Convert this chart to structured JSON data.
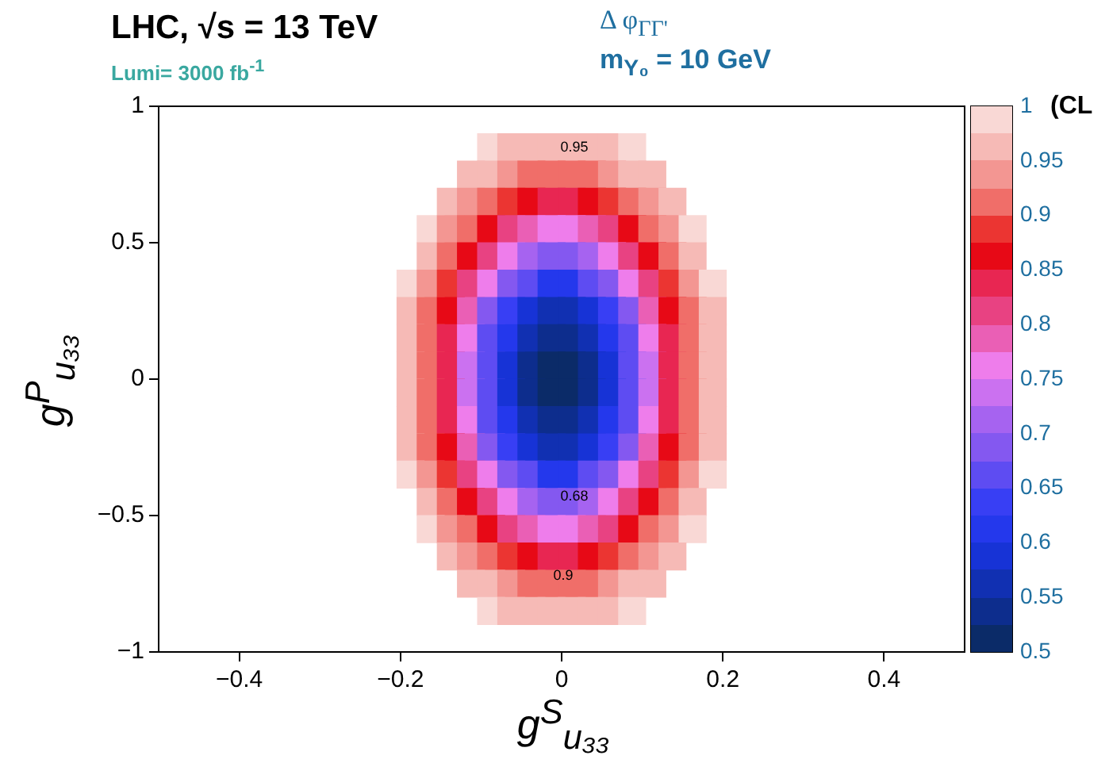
{
  "chart_data": {
    "type": "scatter",
    "title": "LHC,  √s = 13 TeV",
    "marker": "square",
    "annotations": [
      "Lumi= 3000 fb$^{-1}$",
      "Δ φ$_{ΓΓ'}$",
      "m$_{Y₀}$ = 10 GeV",
      "0.95",
      "0.68",
      "0.9"
    ],
    "xlabel": "g$^{S}$$_{u₃₃}$",
    "ylabel": "g$^{P}$$_{u₃₃}$",
    "clabel": "(CL",
    "xlim": [
      -0.5,
      0.5
    ],
    "xticks": [
      {
        "value": -0.4,
        "label": "−0.4"
      },
      {
        "value": -0.2,
        "label": "−0.2"
      },
      0,
      0.2,
      0.4
    ],
    "ylim": [
      -1,
      1
    ],
    "yticks": [
      {
        "value": -1,
        "label": "−1"
      },
      {
        "value": -0.5,
        "label": "−0.5"
      },
      0,
      0.5,
      1
    ],
    "clim": [
      0.5,
      1
    ],
    "cticks": [
      0.5,
      0.55,
      0.6,
      0.65,
      0.7,
      0.75,
      0.8,
      0.85,
      0.9,
      0.95,
      1
    ],
    "x": [
      -0.0875,
      -0.0625,
      -0.0375,
      -0.0125,
      0.0125,
      0.0375,
      0.0625,
      0.0875,
      -0.1125,
      -0.0875,
      -0.0625,
      -0.0375,
      -0.0125,
      0.0125,
      0.0375,
      0.0625,
      0.0875,
      0.1125,
      -0.1375,
      -0.1125,
      -0.0875,
      -0.0625,
      -0.0375,
      -0.0125,
      0.0125,
      0.0375,
      0.0625,
      0.0875,
      0.1125,
      0.1375,
      -0.1625,
      -0.1375,
      -0.1125,
      -0.0875,
      -0.0625,
      -0.0375,
      -0.0125,
      0.0125,
      0.0375,
      0.0625,
      0.0875,
      0.1125,
      0.1375,
      0.1625,
      -0.1625,
      -0.1375,
      -0.1125,
      -0.0875,
      -0.0625,
      -0.0375,
      -0.0125,
      0.0125,
      0.0375,
      0.0625,
      0.0875,
      0.1125,
      0.1375,
      0.1625,
      -0.1875,
      -0.1625,
      -0.1375,
      -0.1125,
      -0.0875,
      -0.0625,
      -0.0375,
      -0.0125,
      0.0125,
      0.0375,
      0.0625,
      0.0875,
      0.1125,
      0.1375,
      0.1625,
      0.1875,
      -0.1875,
      -0.1625,
      -0.1375,
      -0.1125,
      -0.0875,
      -0.0625,
      -0.0375,
      -0.0125,
      0.0125,
      0.0375,
      0.0625,
      0.0875,
      0.1125,
      0.1375,
      0.1625,
      0.1875,
      -0.1875,
      -0.1625,
      -0.1375,
      -0.1125,
      -0.0875,
      -0.0625,
      -0.0375,
      -0.0125,
      0.0125,
      0.0375,
      0.0625,
      0.0875,
      0.1125,
      0.1375,
      0.1625,
      0.1875,
      -0.1875,
      -0.1625,
      -0.1375,
      -0.1125,
      -0.0875,
      -0.0625,
      -0.0375,
      -0.0125,
      0.0125,
      0.0375,
      0.0625,
      0.0875,
      0.1125,
      0.1375,
      0.1625,
      0.1875,
      -0.1875,
      -0.1625,
      -0.1375,
      -0.1125,
      -0.0875,
      -0.0625,
      -0.0375,
      -0.0125,
      0.0125,
      0.0375,
      0.0625,
      0.0875,
      0.1125,
      0.1375,
      0.1625,
      0.1875,
      -0.1875,
      -0.1625,
      -0.1375,
      -0.1125,
      -0.0875,
      -0.0625,
      -0.0375,
      -0.0125,
      0.0125,
      0.0375,
      0.0625,
      0.0875,
      0.1125,
      0.1375,
      0.1625,
      0.1875,
      -0.1875,
      -0.1625,
      -0.1375,
      -0.1125,
      -0.0875,
      -0.0625,
      -0.0375,
      -0.0125,
      0.0125,
      0.0375,
      0.0625,
      0.0875,
      0.1125,
      0.1375,
      0.1625,
      0.1875,
      -0.1875,
      -0.1625,
      -0.1375,
      -0.1125,
      -0.0875,
      -0.0625,
      -0.0375,
      -0.0125,
      0.0125,
      0.0375,
      0.0625,
      0.0875,
      0.1125,
      0.1375,
      0.1625,
      0.1875,
      -0.1625,
      -0.1375,
      -0.1125,
      -0.0875,
      -0.0625,
      -0.0375,
      -0.0125,
      0.0125,
      0.0375,
      0.0625,
      0.0875,
      0.1125,
      0.1375,
      0.1625,
      -0.1625,
      -0.1375,
      -0.1125,
      -0.0875,
      -0.0625,
      -0.0375,
      -0.0125,
      0.0125,
      0.0375,
      0.0625,
      0.0875,
      0.1125,
      0.1375,
      0.1625,
      -0.1375,
      -0.1125,
      -0.0875,
      -0.0625,
      -0.0375,
      -0.0125,
      0.0125,
      0.0375,
      0.0625,
      0.0875,
      0.1125,
      0.1375,
      -0.1125,
      -0.0875,
      -0.0625,
      -0.0375,
      -0.0125,
      0.0125,
      0.0375,
      0.0625,
      0.0875,
      0.1125,
      -0.0875,
      -0.0625,
      -0.0375,
      -0.0125,
      0.0125,
      0.0375,
      0.0625,
      0.0875
    ],
    "values": [
      0.85,
      0.85,
      0.85,
      0.85,
      0.85,
      0.85,
      0.85,
      0.85,
      0.75,
      0.75,
      0.75,
      0.75,
      0.75,
      0.75,
      0.75,
      0.75,
      0.75,
      0.75,
      0.65,
      0.65,
      0.65,
      0.65,
      0.65,
      0.65,
      0.65,
      0.65,
      0.65,
      0.65,
      0.65,
      0.65,
      0.55,
      0.55,
      0.55,
      0.55,
      0.55,
      0.55,
      0.55,
      0.55,
      0.55,
      0.55,
      0.55,
      0.55,
      0.55,
      0.55,
      0.45,
      0.45,
      0.45,
      0.45,
      0.45,
      0.45,
      0.45,
      0.45,
      0.45,
      0.45,
      0.45,
      0.45,
      0.45,
      0.45,
      0.35,
      0.35,
      0.35,
      0.35,
      0.35,
      0.35,
      0.35,
      0.35,
      0.35,
      0.35,
      0.35,
      0.35,
      0.35,
      0.35,
      0.35,
      0.35,
      0.25,
      0.25,
      0.25,
      0.25,
      0.25,
      0.25,
      0.25,
      0.25,
      0.25,
      0.25,
      0.25,
      0.25,
      0.25,
      0.25,
      0.25,
      0.25,
      0.15,
      0.15,
      0.15,
      0.15,
      0.15,
      0.15,
      0.15,
      0.15,
      0.15,
      0.15,
      0.15,
      0.15,
      0.15,
      0.15,
      0.15,
      0.15,
      0.05,
      0.05,
      0.05,
      0.05,
      0.05,
      0.05,
      0.05,
      0.05,
      0.05,
      0.05,
      0.05,
      0.05,
      0.05,
      0.05,
      0.05,
      0.05,
      -0.05,
      -0.05,
      -0.05,
      -0.05,
      -0.05,
      -0.05,
      -0.05,
      -0.05,
      -0.05,
      -0.05,
      -0.05,
      -0.05,
      -0.05,
      -0.05,
      -0.05,
      -0.05,
      -0.15,
      -0.15,
      -0.15,
      -0.15,
      -0.15,
      -0.15,
      -0.15,
      -0.15,
      -0.15,
      -0.15,
      -0.15,
      -0.15,
      -0.15,
      -0.15,
      -0.15,
      -0.15,
      -0.25,
      -0.25,
      -0.25,
      -0.25,
      -0.25,
      -0.25,
      -0.25,
      -0.25,
      -0.25,
      -0.25,
      -0.25,
      -0.25,
      -0.25,
      -0.25,
      -0.25,
      -0.25,
      -0.35,
      -0.35,
      -0.35,
      -0.35,
      -0.35,
      -0.35,
      -0.35,
      -0.35,
      -0.35,
      -0.35,
      -0.35,
      -0.35,
      -0.35,
      -0.35,
      -0.35,
      -0.35,
      -0.45,
      -0.45,
      -0.45,
      -0.45,
      -0.45,
      -0.45,
      -0.45,
      -0.45,
      -0.45,
      -0.45,
      -0.45,
      -0.45,
      -0.45,
      -0.45,
      -0.55,
      -0.55,
      -0.55,
      -0.55,
      -0.55,
      -0.55,
      -0.55,
      -0.55,
      -0.55,
      -0.55,
      -0.55,
      -0.55,
      -0.55,
      -0.55,
      -0.65,
      -0.65,
      -0.65,
      -0.65,
      -0.65,
      -0.65,
      -0.65,
      -0.65,
      -0.65,
      -0.65,
      -0.65,
      -0.65,
      -0.75,
      -0.75,
      -0.75,
      -0.75,
      -0.75,
      -0.75,
      -0.75,
      -0.75,
      -0.75,
      -0.75,
      -0.85,
      -0.85,
      -0.85,
      -0.85,
      -0.85,
      -0.85,
      -0.85,
      -0.85
    ],
    "cvalues": [
      0.99,
      0.97,
      0.96,
      0.95,
      0.95,
      0.96,
      0.97,
      0.99,
      0.97,
      0.95,
      0.93,
      0.91,
      0.9,
      0.9,
      0.91,
      0.93,
      0.95,
      0.97,
      0.97,
      0.93,
      0.91,
      0.88,
      0.85,
      0.84,
      0.84,
      0.85,
      0.88,
      0.91,
      0.93,
      0.97,
      0.98,
      0.94,
      0.91,
      0.86,
      0.81,
      0.78,
      0.76,
      0.76,
      0.78,
      0.81,
      0.86,
      0.91,
      0.94,
      0.98,
      0.96,
      0.92,
      0.86,
      0.8,
      0.75,
      0.71,
      0.69,
      0.69,
      0.71,
      0.75,
      0.8,
      0.86,
      0.92,
      0.96,
      0.98,
      0.93,
      0.89,
      0.82,
      0.75,
      0.69,
      0.65,
      0.62,
      0.62,
      0.65,
      0.69,
      0.75,
      0.82,
      0.89,
      0.93,
      0.98,
      0.97,
      0.92,
      0.86,
      0.78,
      0.7,
      0.64,
      0.59,
      0.56,
      0.56,
      0.59,
      0.64,
      0.7,
      0.78,
      0.86,
      0.92,
      0.97,
      0.96,
      0.91,
      0.84,
      0.75,
      0.67,
      0.61,
      0.55,
      0.53,
      0.53,
      0.55,
      0.61,
      0.67,
      0.75,
      0.84,
      0.91,
      0.96,
      0.96,
      0.91,
      0.83,
      0.74,
      0.66,
      0.59,
      0.54,
      0.52,
      0.52,
      0.54,
      0.59,
      0.66,
      0.74,
      0.83,
      0.91,
      0.96,
      0.96,
      0.91,
      0.83,
      0.74,
      0.66,
      0.59,
      0.54,
      0.52,
      0.52,
      0.54,
      0.59,
      0.66,
      0.74,
      0.83,
      0.91,
      0.96,
      0.96,
      0.91,
      0.84,
      0.75,
      0.67,
      0.61,
      0.55,
      0.53,
      0.53,
      0.55,
      0.61,
      0.67,
      0.75,
      0.84,
      0.91,
      0.96,
      0.97,
      0.92,
      0.86,
      0.78,
      0.7,
      0.64,
      0.59,
      0.56,
      0.56,
      0.59,
      0.64,
      0.7,
      0.78,
      0.86,
      0.92,
      0.97,
      0.98,
      0.93,
      0.89,
      0.82,
      0.75,
      0.69,
      0.65,
      0.62,
      0.62,
      0.65,
      0.69,
      0.75,
      0.82,
      0.89,
      0.93,
      0.98,
      0.96,
      0.92,
      0.86,
      0.8,
      0.75,
      0.71,
      0.69,
      0.69,
      0.71,
      0.75,
      0.8,
      0.86,
      0.92,
      0.96,
      0.98,
      0.94,
      0.91,
      0.86,
      0.81,
      0.78,
      0.76,
      0.76,
      0.78,
      0.81,
      0.86,
      0.91,
      0.94,
      0.98,
      0.97,
      0.93,
      0.91,
      0.88,
      0.85,
      0.84,
      0.84,
      0.85,
      0.88,
      0.91,
      0.93,
      0.97,
      0.97,
      0.95,
      0.93,
      0.91,
      0.9,
      0.9,
      0.91,
      0.93,
      0.95,
      0.97,
      0.99,
      0.97,
      0.96,
      0.95,
      0.95,
      0.96,
      0.97,
      0.99
    ]
  }
}
